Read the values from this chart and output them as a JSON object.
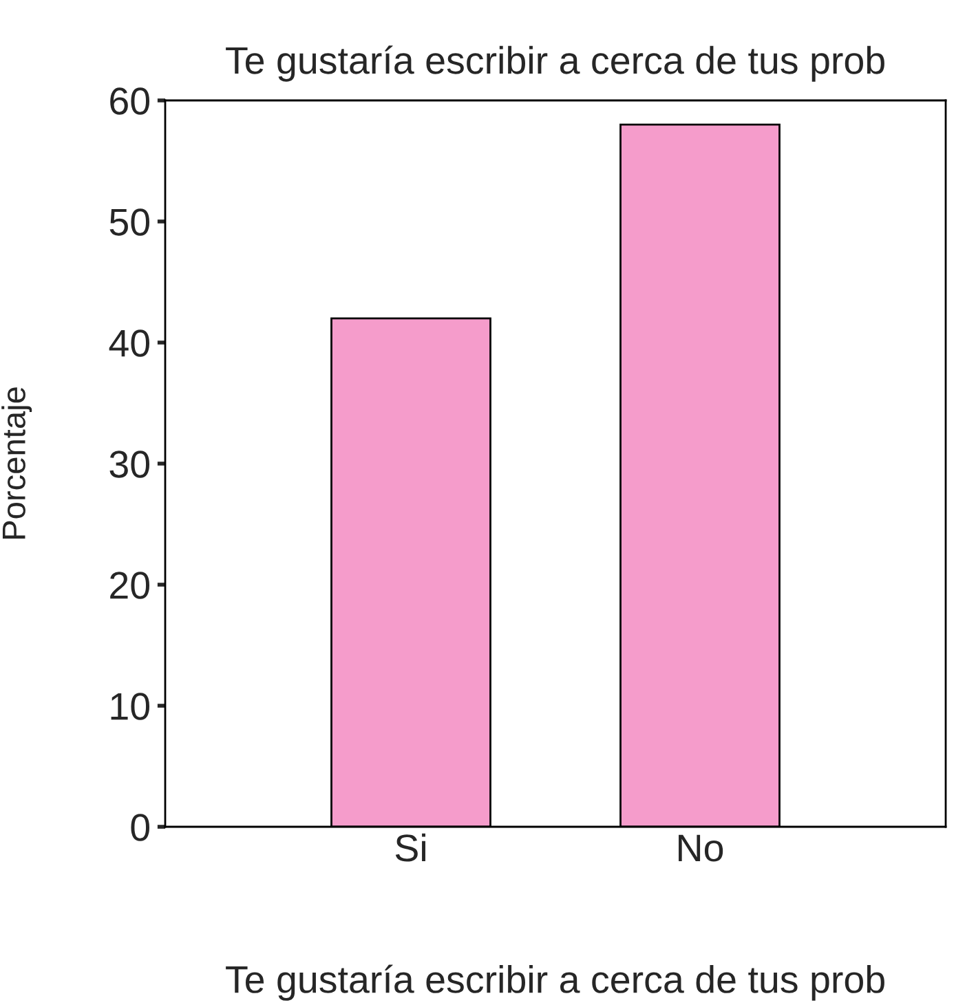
{
  "chart_data": {
    "type": "bar",
    "title": "Te gustaría escribir a cerca de tus prob",
    "xlabel": "Te gustaría escribir a cerca de tus prob",
    "ylabel": "Porcentaje",
    "categories": [
      "Si",
      "No"
    ],
    "values": [
      42,
      58
    ],
    "color": "#f59ccb",
    "ylim": [
      0,
      60
    ],
    "yticks": [
      0,
      10,
      20,
      30,
      40,
      50,
      60
    ],
    "grid": false
  }
}
